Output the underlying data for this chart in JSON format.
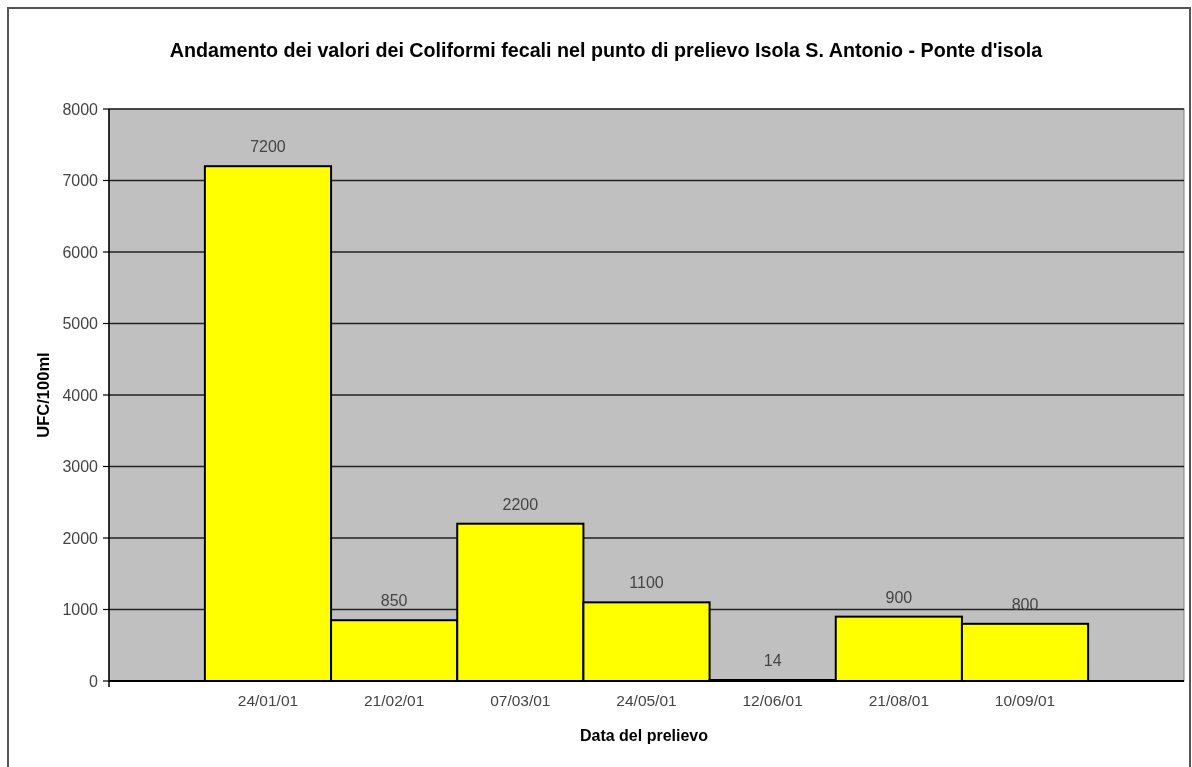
{
  "chart_data": {
    "type": "bar",
    "title": "Andamento dei valori dei Coliformi fecali nel punto di prelievo Isola S. Antonio - Ponte d'isola",
    "xlabel": "Data del prelievo",
    "ylabel": "UFC/100ml",
    "categories": [
      "24/01/01",
      "21/02/01",
      "07/03/01",
      "24/05/01",
      "12/06/01",
      "21/08/01",
      "10/09/01"
    ],
    "values": [
      7200,
      850,
      2200,
      1100,
      14,
      900,
      800
    ],
    "color": "#ffff00",
    "ylim": [
      0,
      8000
    ],
    "yticks": [
      0,
      1000,
      2000,
      3000,
      4000,
      5000,
      6000,
      7000,
      8000
    ],
    "grid": "y",
    "data_labels": true
  }
}
